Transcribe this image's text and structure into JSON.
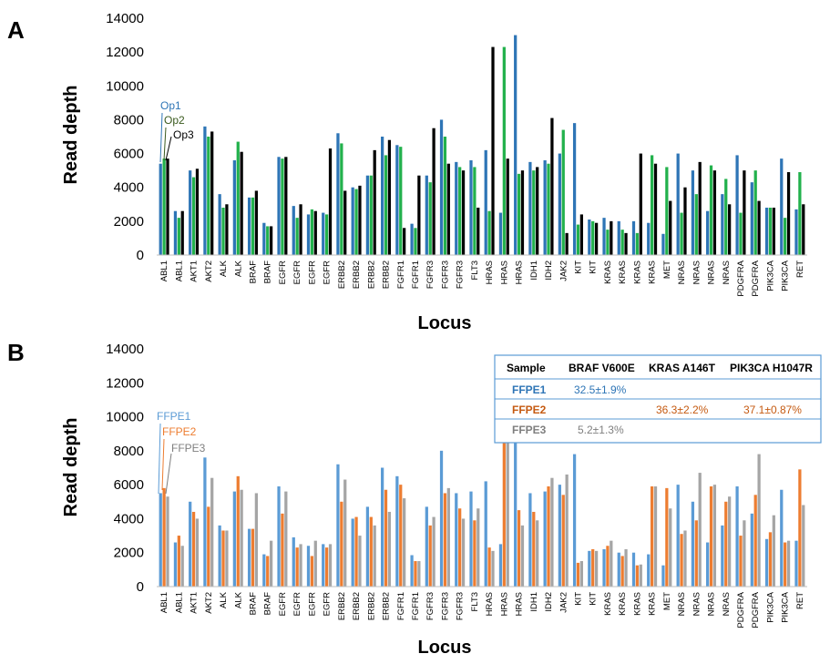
{
  "panels": [
    {
      "label": "A"
    },
    {
      "label": "B"
    }
  ],
  "chart_data": [
    {
      "type": "bar",
      "ylabel": "Read depth",
      "xlabel": "Locus",
      "ylim": [
        0,
        14000
      ],
      "yticks": [
        0,
        2000,
        4000,
        6000,
        8000,
        10000,
        12000,
        14000
      ],
      "grid": false,
      "categories": [
        "ABL1",
        "ABL1",
        "AKT1",
        "AKT2",
        "ALK",
        "ALK",
        "BRAF",
        "BRAF",
        "EGFR",
        "EGFR",
        "EGFR",
        "EGFR",
        "ERBB2",
        "ERBB2",
        "ERBB2",
        "ERBB2",
        "FGFR1",
        "FGFR1",
        "FGFR3",
        "FGFR3",
        "FGFR3",
        "FLT3",
        "HRAS",
        "HRAS",
        "HRAS",
        "IDH1",
        "IDH2",
        "JAK2",
        "KIT",
        "KIT",
        "KRAS",
        "KRAS",
        "KRAS",
        "KRAS",
        "MET",
        "NRAS",
        "NRAS",
        "NRAS",
        "NRAS",
        "PDGFRA",
        "PDGFRA",
        "PIK3CA",
        "PIK3CA",
        "RET"
      ],
      "series": [
        {
          "name": "Op1",
          "color": "#2e75b6",
          "values": [
            5400,
            2600,
            5000,
            7600,
            3600,
            5600,
            3400,
            1900,
            5800,
            2900,
            2400,
            2500,
            7200,
            4000,
            4700,
            7000,
            6500,
            1850,
            4700,
            8000,
            5500,
            5600,
            6200,
            2500,
            13000,
            5500,
            5600,
            6000,
            7800,
            2100,
            2200,
            2000,
            2000,
            1900,
            1250,
            6000,
            5000,
            2600,
            3600,
            5900,
            4300,
            2800,
            5700,
            2700
          ]
        },
        {
          "name": "Op2",
          "color": "#22b14c",
          "values": [
            5700,
            2200,
            4600,
            7000,
            2800,
            6700,
            3400,
            1700,
            5700,
            2200,
            2700,
            2400,
            6600,
            3900,
            4700,
            5900,
            6400,
            1600,
            4300,
            7000,
            5200,
            5200,
            2600,
            12300,
            4800,
            5000,
            5400,
            7400,
            1800,
            2000,
            1500,
            1500,
            1300,
            5900,
            5200,
            2500,
            3600,
            5300,
            4500,
            2500,
            5000,
            2800,
            2200,
            4900
          ]
        },
        {
          "name": "Op3",
          "color": "#000000",
          "values": [
            5700,
            2600,
            5100,
            7300,
            3000,
            6100,
            3800,
            1700,
            5800,
            3000,
            2600,
            6300,
            3800,
            4100,
            6200,
            6800,
            1600,
            4700,
            7500,
            5400,
            5000,
            2800,
            12300,
            5700,
            5000,
            5200,
            8100,
            1300,
            2400,
            1900,
            2000,
            1300,
            6000,
            5400,
            3200,
            4000,
            5500,
            5000,
            3000,
            5000,
            3200,
            2800,
            4900,
            3000
          ]
        }
      ],
      "annotations": [
        "Op1",
        "Op2",
        "Op3"
      ]
    },
    {
      "type": "bar",
      "ylabel": "Read depth",
      "xlabel": "Locus",
      "ylim": [
        0,
        14000
      ],
      "yticks": [
        0,
        2000,
        4000,
        6000,
        8000,
        10000,
        12000,
        14000
      ],
      "grid": false,
      "categories": [
        "ABL1",
        "ABL1",
        "AKT1",
        "AKT2",
        "ALK",
        "ALK",
        "BRAF",
        "BRAF",
        "EGFR",
        "EGFR",
        "EGFR",
        "EGFR",
        "ERBB2",
        "ERBB2",
        "ERBB2",
        "ERBB2",
        "FGFR1",
        "FGFR1",
        "FGFR3",
        "FGFR3",
        "FGFR3",
        "FLT3",
        "HRAS",
        "HRAS",
        "HRAS",
        "IDH1",
        "IDH2",
        "JAK2",
        "KIT",
        "KIT",
        "KRAS",
        "KRAS",
        "KRAS",
        "KRAS",
        "MET",
        "NRAS",
        "NRAS",
        "NRAS",
        "NRAS",
        "PDGFRA",
        "PDGFRA",
        "PIK3CA",
        "PIK3CA",
        "RET"
      ],
      "series": [
        {
          "name": "FFPE1",
          "color": "#5b9bd5",
          "values": [
            5500,
            2600,
            5000,
            7600,
            3600,
            5600,
            3400,
            1900,
            5900,
            2900,
            2400,
            2500,
            7200,
            4000,
            4700,
            7000,
            6500,
            1850,
            4700,
            8000,
            5500,
            5600,
            6200,
            2500,
            13000,
            5500,
            5600,
            6000,
            7800,
            2100,
            2200,
            2000,
            2000,
            1900,
            1250,
            6000,
            5000,
            2600,
            3600,
            5900,
            4300,
            2800,
            5700,
            2700
          ]
        },
        {
          "name": "FFPE2",
          "color": "#ed7d31",
          "values": [
            5800,
            3000,
            4400,
            4700,
            3300,
            6500,
            3400,
            1800,
            4300,
            2300,
            1800,
            2300,
            5000,
            4100,
            4100,
            5700,
            6000,
            1500,
            3600,
            5500,
            4600,
            3900,
            2300,
            10500,
            4500,
            4400,
            5900,
            5400,
            1400,
            2200,
            2400,
            1800,
            1250,
            5900,
            5800,
            3100,
            3900,
            5900,
            5000,
            3000,
            5400,
            3200,
            2600,
            6900
          ]
        },
        {
          "name": "FFPE3",
          "color": "#a5a5a5",
          "values": [
            5300,
            2400,
            4000,
            6400,
            3300,
            5700,
            5500,
            2700,
            5600,
            2500,
            2700,
            2500,
            6300,
            3000,
            3600,
            4400,
            5200,
            1500,
            4100,
            5800,
            4000,
            4600,
            2100,
            8800,
            3600,
            3900,
            6400,
            6600,
            1500,
            2100,
            2700,
            2200,
            1300,
            5900,
            4600,
            3300,
            6700,
            6000,
            5300,
            3900,
            7800,
            4200,
            2700,
            4800
          ]
        }
      ],
      "annotations": [
        "FFPE1",
        "FFPE2",
        "FFPE3"
      ],
      "table": {
        "header": [
          "Sample",
          "BRAF V600E",
          "KRAS A146T",
          "PIK3CA H1047R"
        ],
        "rows": [
          {
            "sample": "FFPE1",
            "color": "#2e75b6",
            "cells": [
              "32.5±1.9%",
              "",
              ""
            ]
          },
          {
            "sample": "FFPE2",
            "color": "#c55a11",
            "cells": [
              "",
              "36.3±2.2%",
              "37.1±0.87%"
            ]
          },
          {
            "sample": "FFPE3",
            "color": "#7f7f7f",
            "cells": [
              "5.2±1.3%",
              "",
              ""
            ]
          }
        ]
      }
    }
  ]
}
